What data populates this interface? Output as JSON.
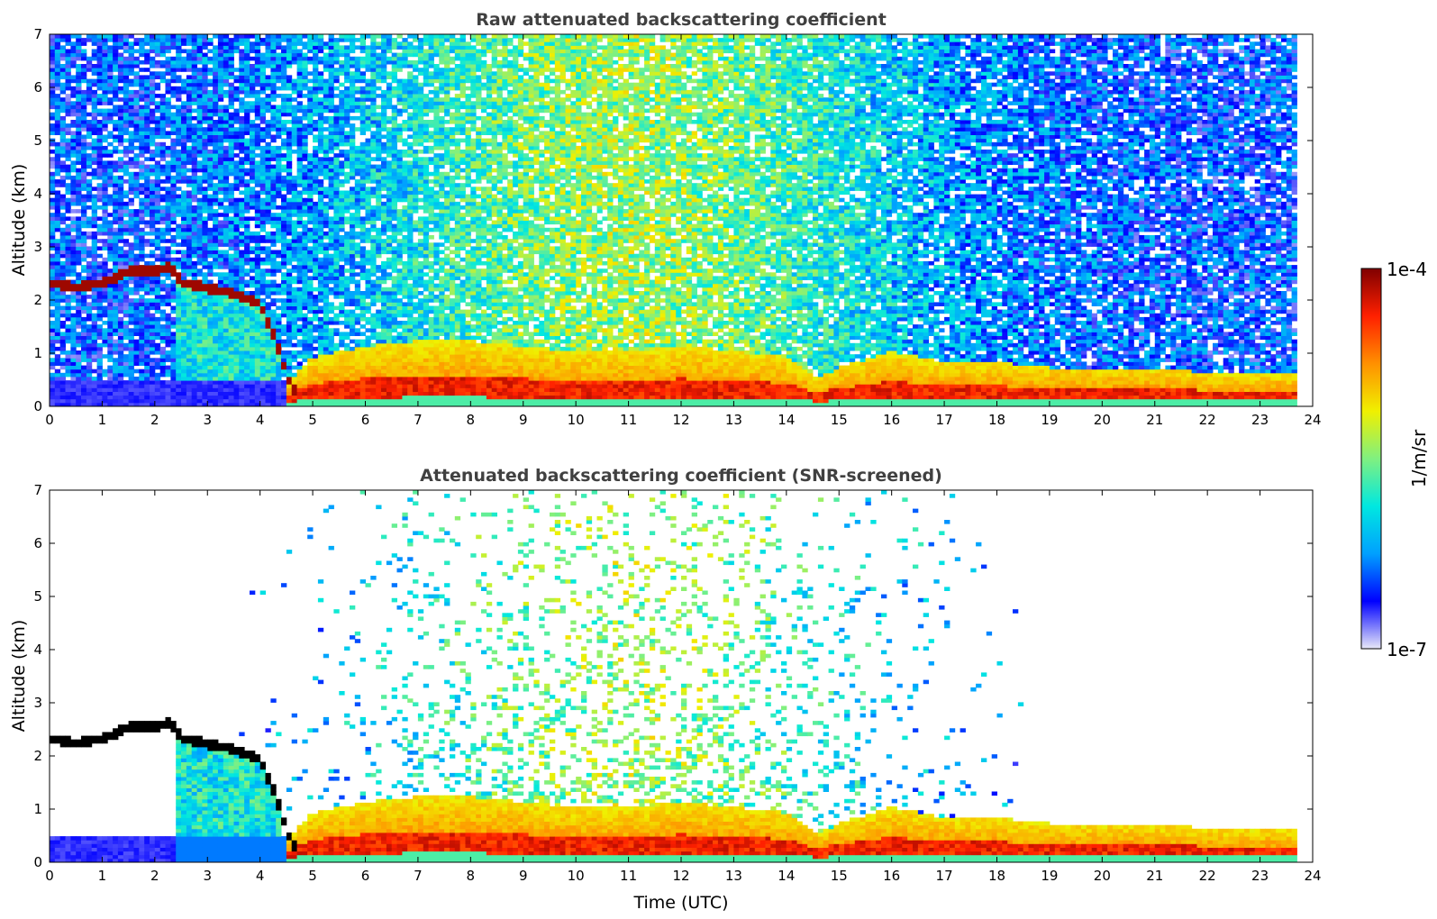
{
  "chart_data": [
    {
      "type": "heatmap",
      "id": "raw",
      "title": "Raw attenuated backscattering coefficient",
      "xlabel": "",
      "ylabel": "Altitude (km)",
      "xlim": [
        0,
        24
      ],
      "ylim": [
        0,
        7
      ],
      "x_ticks": [
        0,
        1,
        2,
        3,
        4,
        5,
        6,
        7,
        8,
        9,
        10,
        11,
        12,
        13,
        14,
        15,
        16,
        17,
        18,
        19,
        20,
        21,
        22,
        23,
        24
      ],
      "y_ticks": [
        0,
        1,
        2,
        3,
        4,
        5,
        6,
        7
      ],
      "data_end_time": 23.7,
      "snr_screened": false,
      "color_scale": "log10",
      "features": {
        "elevated_layer_time": [
          0,
          0.5,
          1.0,
          1.5,
          2.0,
          2.3,
          2.5,
          3.0,
          3.5,
          4.0,
          4.3,
          4.6
        ],
        "elevated_layer_alt": [
          2.3,
          2.2,
          2.3,
          2.5,
          2.5,
          2.6,
          2.3,
          2.2,
          2.1,
          1.9,
          1.2,
          0.3
        ],
        "boundary_layer_top_time": [
          0,
          2.4,
          4.5,
          5,
          6,
          7,
          8,
          9,
          10,
          11,
          12,
          13,
          14,
          14.6,
          15,
          16,
          17,
          18,
          19,
          20,
          21,
          22,
          23,
          23.7
        ],
        "boundary_layer_top_alt": [
          0.6,
          0.5,
          0.4,
          0.9,
          1.1,
          1.2,
          1.2,
          1.1,
          1.0,
          1.0,
          1.1,
          1.0,
          0.9,
          0.5,
          0.7,
          1.0,
          0.8,
          0.8,
          0.7,
          0.7,
          0.7,
          0.6,
          0.6,
          0.6
        ]
      }
    },
    {
      "type": "heatmap",
      "id": "screened",
      "title": "Attenuated backscattering coefficient (SNR-screened)",
      "xlabel": "Time (UTC)",
      "ylabel": "Altitude (km)",
      "xlim": [
        0,
        24
      ],
      "ylim": [
        0,
        7
      ],
      "x_ticks": [
        0,
        1,
        2,
        3,
        4,
        5,
        6,
        7,
        8,
        9,
        10,
        11,
        12,
        13,
        14,
        15,
        16,
        17,
        18,
        19,
        20,
        21,
        22,
        23,
        24
      ],
      "y_ticks": [
        0,
        1,
        2,
        3,
        4,
        5,
        6,
        7
      ],
      "data_end_time": 23.7,
      "snr_screened": true,
      "color_scale": "log10",
      "features": {
        "elevated_layer_time": [
          0,
          0.5,
          1.0,
          1.5,
          2.0,
          2.3,
          2.5,
          3.0,
          3.5,
          4.0,
          4.3,
          4.6
        ],
        "elevated_layer_alt": [
          2.3,
          2.2,
          2.3,
          2.5,
          2.5,
          2.6,
          2.3,
          2.2,
          2.1,
          1.9,
          1.2,
          0.3
        ],
        "boundary_layer_top_time": [
          0,
          2.4,
          4.5,
          5,
          6,
          7,
          8,
          9,
          10,
          11,
          12,
          13,
          14,
          14.6,
          15,
          16,
          17,
          18,
          19,
          20,
          21,
          22,
          23,
          23.7
        ],
        "boundary_layer_top_alt": [
          0.6,
          0.5,
          0.4,
          0.9,
          1.1,
          1.2,
          1.2,
          1.1,
          1.0,
          1.0,
          1.1,
          1.0,
          0.9,
          0.5,
          0.7,
          1.0,
          0.8,
          0.8,
          0.7,
          0.7,
          0.7,
          0.6,
          0.6,
          0.6
        ]
      }
    }
  ],
  "colorbar": {
    "label": "1/m/sr",
    "max_label": "1e-4",
    "min_label": "1e-7",
    "max_value": 0.0001,
    "min_value": 1e-07,
    "colormap": "jet",
    "colors": [
      "#e8e8f8",
      "#0000ff",
      "#00a0ff",
      "#00e8e0",
      "#80f080",
      "#f0f000",
      "#ff9000",
      "#ff2000",
      "#800000"
    ]
  }
}
